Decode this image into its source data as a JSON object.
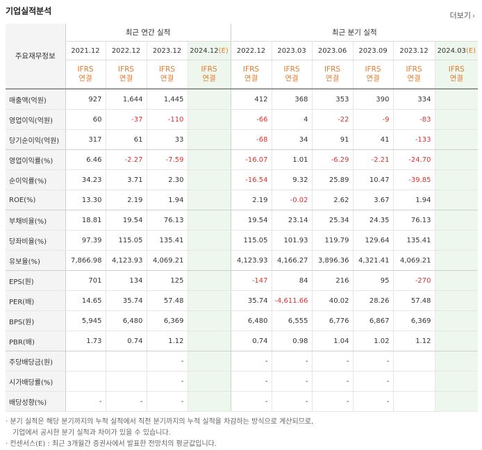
{
  "title": "기업실적분석",
  "more_label": "더보기",
  "row_header": "주요재무정보",
  "annual_header": "최근 연간 실적",
  "quarter_header": "최근 분기 실적",
  "annual_periods": [
    "2021.12",
    "2022.12",
    "2023.12",
    "2024.12(E)"
  ],
  "quarter_periods": [
    "2022.12",
    "2023.03",
    "2023.06",
    "2023.09",
    "2023.12",
    "2024.03(E)"
  ],
  "ifrs_line1": "IFRS",
  "ifrs_line2": "연결",
  "rows": [
    {
      "label": "매출액(억원)",
      "annual": [
        "927",
        "1,644",
        "1,445",
        ""
      ],
      "quarter": [
        "412",
        "368",
        "353",
        "390",
        "334",
        ""
      ]
    },
    {
      "label": "영업이익(억원)",
      "annual": [
        "60",
        "-37",
        "-110",
        ""
      ],
      "quarter": [
        "-66",
        "4",
        "-22",
        "-9",
        "-83",
        ""
      ]
    },
    {
      "label": "당기순이익(억원)",
      "annual": [
        "317",
        "61",
        "33",
        ""
      ],
      "quarter": [
        "-68",
        "34",
        "91",
        "41",
        "-133",
        ""
      ]
    },
    {
      "label": "영업이익률(%)",
      "annual": [
        "6.46",
        "-2.27",
        "-7.59",
        ""
      ],
      "quarter": [
        "-16.07",
        "1.01",
        "-6.29",
        "-2.21",
        "-24.70",
        ""
      ]
    },
    {
      "label": "순이익률(%)",
      "annual": [
        "34.23",
        "3.71",
        "2.30",
        ""
      ],
      "quarter": [
        "-16.54",
        "9.32",
        "25.89",
        "10.47",
        "-39.85",
        ""
      ]
    },
    {
      "label": "ROE(%)",
      "annual": [
        "13.30",
        "2.19",
        "1.94",
        ""
      ],
      "quarter": [
        "2.19",
        "-0.02",
        "2.62",
        "3.67",
        "1.94",
        ""
      ]
    },
    {
      "label": "부채비율(%)",
      "annual": [
        "18.81",
        "19.54",
        "76.13",
        ""
      ],
      "quarter": [
        "19.54",
        "23.14",
        "25.34",
        "24.35",
        "76.13",
        ""
      ]
    },
    {
      "label": "당좌비율(%)",
      "annual": [
        "97.39",
        "115.05",
        "135.41",
        ""
      ],
      "quarter": [
        "115.05",
        "101.93",
        "119.79",
        "129.64",
        "135.41",
        ""
      ]
    },
    {
      "label": "유보율(%)",
      "annual": [
        "7,866.98",
        "4,123.93",
        "4,069.21",
        ""
      ],
      "quarter": [
        "4,123.93",
        "4,166.27",
        "3,896.36",
        "4,321.41",
        "4,069.21",
        ""
      ]
    },
    {
      "label": "EPS(원)",
      "annual": [
        "701",
        "134",
        "125",
        ""
      ],
      "quarter": [
        "-147",
        "84",
        "216",
        "95",
        "-270",
        ""
      ]
    },
    {
      "label": "PER(배)",
      "annual": [
        "14.65",
        "35.74",
        "57.48",
        ""
      ],
      "quarter": [
        "35.74",
        "-4,611.66",
        "40.02",
        "28.26",
        "57.48",
        ""
      ]
    },
    {
      "label": "BPS(원)",
      "annual": [
        "5,945",
        "6,480",
        "6,369",
        ""
      ],
      "quarter": [
        "6,480",
        "6,555",
        "6,776",
        "6,867",
        "6,369",
        ""
      ]
    },
    {
      "label": "PBR(배)",
      "annual": [
        "1.73",
        "0.74",
        "1.12",
        ""
      ],
      "quarter": [
        "0.74",
        "0.98",
        "1.04",
        "1.02",
        "1.12",
        ""
      ]
    },
    {
      "label": "주당배당금(원)",
      "annual": [
        "",
        "",
        "-",
        ""
      ],
      "quarter": [
        "-",
        "-",
        "-",
        "-",
        "",
        ""
      ]
    },
    {
      "label": "시가배당률(%)",
      "annual": [
        "",
        "",
        "-",
        ""
      ],
      "quarter": [
        "-",
        "-",
        "-",
        "-",
        "",
        ""
      ]
    },
    {
      "label": "배당성향(%)",
      "annual": [
        "-",
        "-",
        "-",
        ""
      ],
      "quarter": [
        "-",
        "-",
        "-",
        "-",
        "",
        ""
      ]
    }
  ],
  "notes": [
    "분기 실적은 해당 분기까지의 누적 실적에서 직전 분기까지의 누적 실적을 차감하는 방식으로 계산되므로,",
    "기업에서 공시한 분기 실적과 차이가 있을 수 있습니다.",
    "컨센서스(E) : 최근 3개월간 증권사에서 발표한 전망치의 평균값입니다."
  ]
}
